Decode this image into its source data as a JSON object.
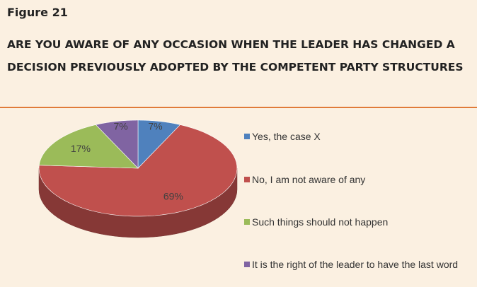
{
  "chart_data": {
    "type": "pie",
    "figure_label": "Figure 21",
    "title_lines": [
      "ARE YOU AWARE OF ANY OCCASION WHEN THE LEADER HAS CHANGED A",
      "DECISION PREVIOUSLY ADOPTED BY THE COMPETENT PARTY STRUCTURES"
    ],
    "categories": [
      "Yes, the case X",
      "No, I am not aware of any",
      "Such things should not happen",
      "It is the right of the leader to have the last word"
    ],
    "values": [
      7,
      69,
      17,
      7
    ],
    "value_labels": [
      "7%",
      "69%",
      "17%",
      "7%"
    ],
    "colors": [
      "#4f81bd",
      "#c0504d",
      "#9bbb59",
      "#8064a2"
    ],
    "legend": "right"
  }
}
